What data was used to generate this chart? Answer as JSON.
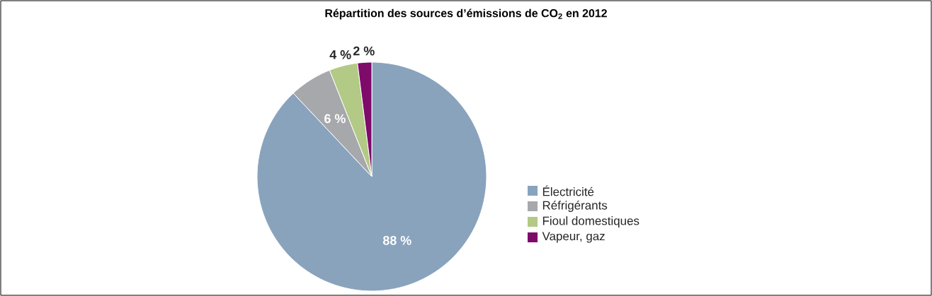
{
  "chart_data": {
    "type": "pie",
    "title": "Répartition des sources d’émissions de CO$_{2}$ en 2012",
    "categories": [
      "Électricité",
      "Réfrigérants",
      "Fioul domestiques",
      "Vapeur, gaz"
    ],
    "values": [
      88,
      6,
      4,
      2
    ],
    "value_labels": [
      "88 %",
      "6 %",
      "4 %",
      "2 %"
    ],
    "colors": [
      "#89a3bd",
      "#a7a8ac",
      "#b3c986",
      "#7e0a6a"
    ],
    "legend": "right"
  }
}
